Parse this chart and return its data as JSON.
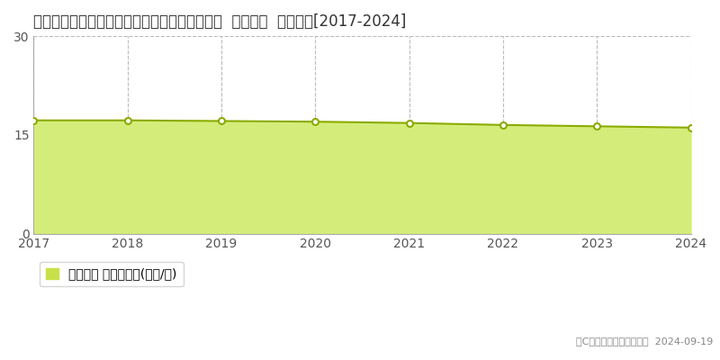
{
  "title": "静岡県静岡市清水区草ヶ谷字足高２９９番７外  基準地価  地価推移[2017-2024]",
  "years": [
    2017,
    2018,
    2019,
    2020,
    2021,
    2022,
    2023,
    2024
  ],
  "values": [
    17.2,
    17.2,
    17.1,
    17.0,
    16.8,
    16.5,
    16.3,
    16.1
  ],
  "ylim": [
    0,
    30
  ],
  "yticks": [
    0,
    15,
    30
  ],
  "fill_color": "#d4ed7a",
  "line_color": "#8aab00",
  "marker_color": "#ffffff",
  "marker_edge_color": "#8aab00",
  "bg_color": "#ffffff",
  "grid_color": "#bbbbbb",
  "legend_label": "基準地価 平均坪単価(万円/坪)",
  "legend_box_color": "#c8e048",
  "copyright": "（C）土地価格ドットコム  2024-09-19",
  "title_fontsize": 12,
  "axis_fontsize": 10,
  "legend_fontsize": 10,
  "copyright_fontsize": 8
}
